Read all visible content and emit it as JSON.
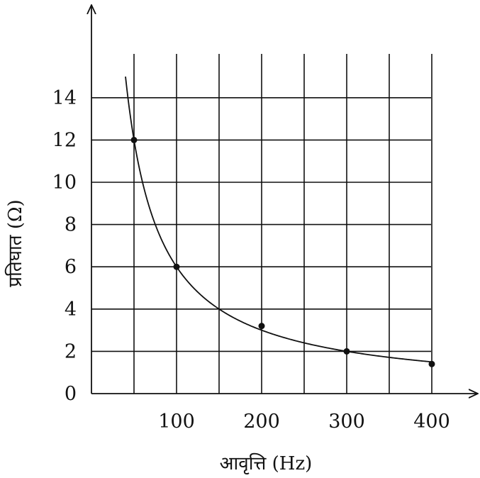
{
  "chart_data": {
    "type": "line",
    "title": "",
    "xlabel": "आवृत्ति (Hz)",
    "ylabel": "प्रतिघात (Ω)",
    "x_ticks": [
      100,
      200,
      300,
      400
    ],
    "x_tick_labels": [
      "100",
      "200",
      "300",
      "400"
    ],
    "y_ticks": [
      0,
      2,
      4,
      6,
      8,
      10,
      12,
      14
    ],
    "y_tick_labels": [
      "0",
      "2",
      "4",
      "6",
      "8",
      "10",
      "12",
      "14"
    ],
    "xlim": [
      -50,
      450
    ],
    "ylim": [
      0,
      16
    ],
    "grid": true,
    "vertical_grid_x": [
      50,
      100,
      150,
      200,
      250,
      300,
      350,
      400
    ],
    "series": [
      {
        "points": [
          {
            "x": 50,
            "y": 12
          },
          {
            "x": 100,
            "y": 6
          },
          {
            "x": 200,
            "y": 3.2
          },
          {
            "x": 300,
            "y": 2
          },
          {
            "x": 400,
            "y": 1.4
          }
        ],
        "curve_x_range": [
          40,
          400
        ]
      }
    ]
  }
}
